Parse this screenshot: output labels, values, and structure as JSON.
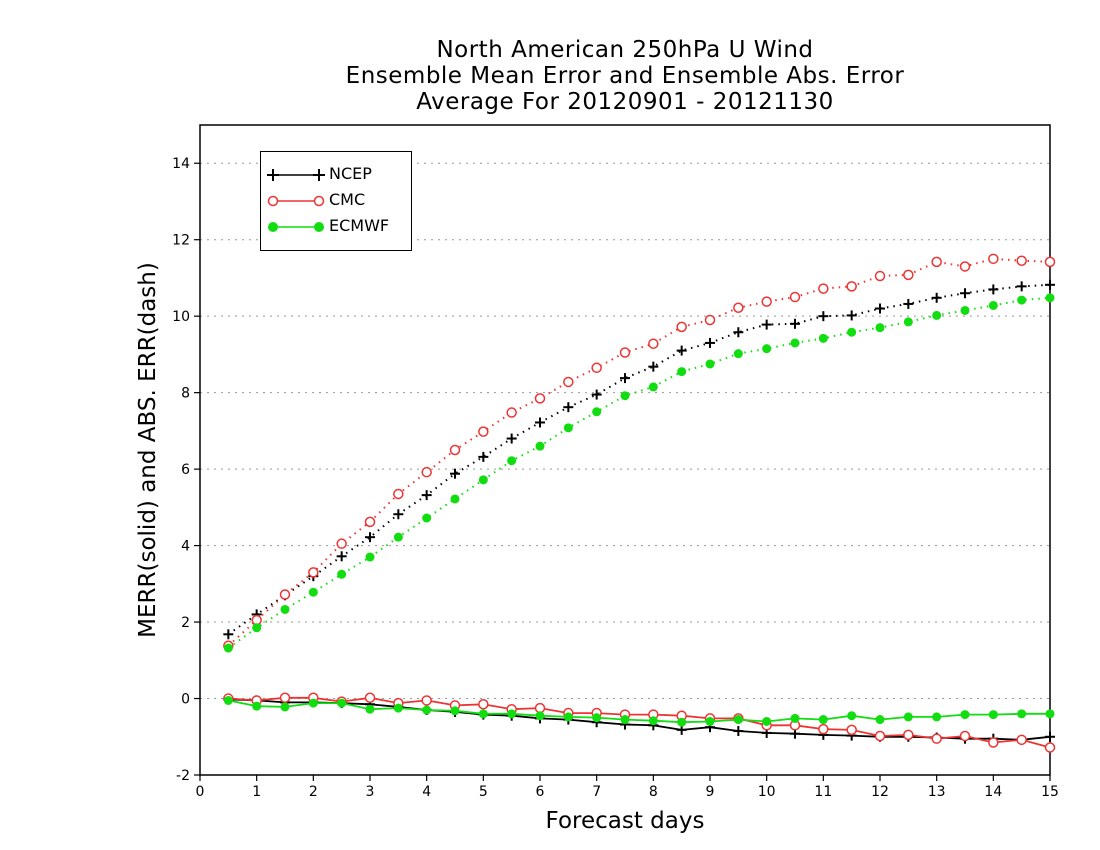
{
  "title_lines": [
    "North American 250hPa U Wind",
    "Ensemble Mean Error and Ensemble Abs. Error",
    "Average For 20120901 - 20121130"
  ],
  "chart_data": {
    "type": "line",
    "xlabel": "Forecast days",
    "ylabel": "MERR(solid) and ABS. ERR(dash)",
    "xlim": [
      0,
      15
    ],
    "ylim": [
      -2,
      15
    ],
    "x_ticks": [
      "0",
      "1",
      "2",
      "3",
      "4",
      "5",
      "6",
      "7",
      "8",
      "9",
      "10",
      "11",
      "12",
      "13",
      "14",
      "15"
    ],
    "y_ticks": [
      "-2",
      "0",
      "2",
      "4",
      "6",
      "8",
      "10",
      "12",
      "14"
    ],
    "grid": "horizontal dotted",
    "legend_position": "top-left",
    "x": [
      0.5,
      1,
      1.5,
      2,
      2.5,
      3,
      3.5,
      4,
      4.5,
      5,
      5.5,
      6,
      6.5,
      7,
      7.5,
      8,
      8.5,
      9,
      9.5,
      10,
      10.5,
      11,
      11.5,
      12,
      12.5,
      13,
      13.5,
      14,
      14.5,
      15
    ],
    "series": [
      {
        "name": "NCEP",
        "color": "#000000",
        "marker": "plus",
        "abs_err": [
          1.68,
          2.2,
          2.7,
          3.2,
          3.72,
          4.22,
          4.82,
          5.32,
          5.88,
          6.32,
          6.8,
          7.22,
          7.62,
          7.95,
          8.38,
          8.68,
          9.1,
          9.3,
          9.58,
          9.78,
          9.8,
          10.0,
          10.02,
          10.2,
          10.32,
          10.48,
          10.6,
          10.7,
          10.78,
          10.82
        ],
        "mean_err": [
          -0.02,
          -0.05,
          -0.1,
          -0.1,
          -0.12,
          -0.15,
          -0.22,
          -0.3,
          -0.35,
          -0.42,
          -0.45,
          -0.52,
          -0.55,
          -0.62,
          -0.68,
          -0.7,
          -0.82,
          -0.75,
          -0.85,
          -0.9,
          -0.92,
          -0.95,
          -0.97,
          -1.0,
          -1.0,
          -1.02,
          -1.05,
          -1.05,
          -1.08,
          -1.0
        ]
      },
      {
        "name": "CMC",
        "color": "#ee3333",
        "marker": "open-circle",
        "abs_err": [
          1.38,
          2.05,
          2.72,
          3.3,
          4.05,
          4.62,
          5.35,
          5.92,
          6.5,
          6.98,
          7.48,
          7.85,
          8.28,
          8.65,
          9.05,
          9.28,
          9.72,
          9.9,
          10.22,
          10.38,
          10.5,
          10.72,
          10.78,
          11.05,
          11.08,
          11.42,
          11.3,
          11.5,
          11.45,
          11.42
        ],
        "mean_err": [
          0.0,
          -0.05,
          0.02,
          0.02,
          -0.08,
          0.02,
          -0.12,
          -0.05,
          -0.18,
          -0.15,
          -0.28,
          -0.25,
          -0.38,
          -0.38,
          -0.42,
          -0.42,
          -0.45,
          -0.52,
          -0.52,
          -0.7,
          -0.7,
          -0.8,
          -0.82,
          -0.98,
          -0.95,
          -1.05,
          -0.98,
          -1.15,
          -1.08,
          -1.28
        ]
      },
      {
        "name": "ECMWF",
        "color": "#11dd11",
        "marker": "filled-circle",
        "abs_err": [
          1.32,
          1.85,
          2.33,
          2.78,
          3.25,
          3.7,
          4.22,
          4.72,
          5.22,
          5.72,
          6.22,
          6.6,
          7.08,
          7.5,
          7.92,
          8.15,
          8.55,
          8.75,
          9.02,
          9.15,
          9.3,
          9.42,
          9.58,
          9.7,
          9.85,
          10.02,
          10.15,
          10.28,
          10.42,
          10.48
        ],
        "mean_err": [
          -0.05,
          -0.2,
          -0.22,
          -0.12,
          -0.12,
          -0.28,
          -0.25,
          -0.3,
          -0.32,
          -0.4,
          -0.4,
          -0.45,
          -0.48,
          -0.5,
          -0.55,
          -0.58,
          -0.62,
          -0.6,
          -0.55,
          -0.6,
          -0.52,
          -0.55,
          -0.45,
          -0.55,
          -0.48,
          -0.48,
          -0.42,
          -0.42,
          -0.4,
          -0.4
        ]
      }
    ]
  }
}
